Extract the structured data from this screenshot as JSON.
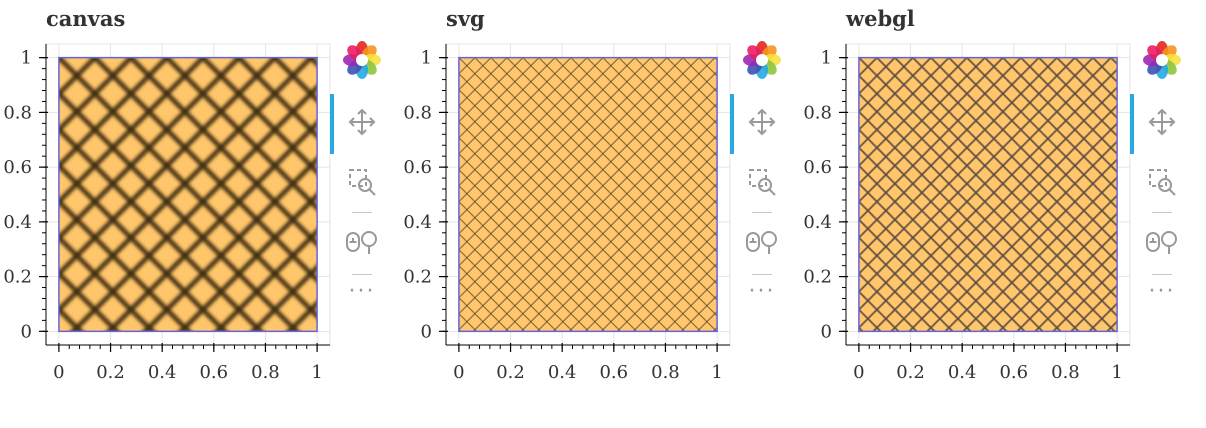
{
  "chart_data": [
    {
      "type": "area",
      "title": "canvas",
      "x": [
        0,
        1,
        1,
        0
      ],
      "y": [
        0,
        0,
        1,
        1
      ],
      "xlim": [
        -0.05,
        1.05
      ],
      "ylim": [
        -0.05,
        1.05
      ],
      "xticks": [
        0,
        0.2,
        0.4,
        0.6,
        0.8,
        1
      ],
      "yticks": [
        0,
        0.2,
        0.4,
        0.6,
        0.8,
        1
      ],
      "xtick_labels": [
        "0",
        "0.2",
        "0.4",
        "0.6",
        "0.8",
        "1"
      ],
      "ytick_labels": [
        "0",
        "0.2",
        "0.4",
        "0.6",
        "0.8",
        "1"
      ],
      "grid": true,
      "fill_color": "#ffc66b",
      "line_color": "#6464dd",
      "hatch": "cross-diagonal",
      "hatch_style": "blurred-coarse"
    },
    {
      "type": "area",
      "title": "svg",
      "x": [
        0,
        1,
        1,
        0
      ],
      "y": [
        0,
        0,
        1,
        1
      ],
      "xlim": [
        -0.05,
        1.05
      ],
      "ylim": [
        -0.05,
        1.05
      ],
      "xticks": [
        0,
        0.2,
        0.4,
        0.6,
        0.8,
        1
      ],
      "yticks": [
        0,
        0.2,
        0.4,
        0.6,
        0.8,
        1
      ],
      "xtick_labels": [
        "0",
        "0.2",
        "0.4",
        "0.6",
        "0.8",
        "1"
      ],
      "ytick_labels": [
        "0",
        "0.2",
        "0.4",
        "0.6",
        "0.8",
        "1"
      ],
      "grid": true,
      "fill_color": "#ffc66b",
      "line_color": "#6464dd",
      "hatch": "cross-diagonal",
      "hatch_style": "crisp-fine"
    },
    {
      "type": "area",
      "title": "webgl",
      "x": [
        0,
        1,
        1,
        0
      ],
      "y": [
        0,
        0,
        1,
        1
      ],
      "xlim": [
        -0.05,
        1.05
      ],
      "ylim": [
        -0.05,
        1.05
      ],
      "xticks": [
        0,
        0.2,
        0.4,
        0.6,
        0.8,
        1
      ],
      "yticks": [
        0,
        0.2,
        0.4,
        0.6,
        0.8,
        1
      ],
      "xtick_labels": [
        "0",
        "0.2",
        "0.4",
        "0.6",
        "0.8",
        "1"
      ],
      "ytick_labels": [
        "0",
        "0.2",
        "0.4",
        "0.6",
        "0.8",
        "1"
      ],
      "grid": true,
      "fill_color": "#ffc66b",
      "line_color": "#6464dd",
      "hatch": "cross-diagonal",
      "hatch_style": "medium"
    }
  ],
  "toolbar": {
    "tools": [
      "bokeh-logo-icon",
      "pan-icon",
      "box-zoom-icon",
      "wheel-zoom-icon",
      "more-tools-icon"
    ],
    "more_label": "···",
    "active_tool": "pan-icon",
    "active_color": "#26aae1",
    "icon_color": "#999999"
  }
}
